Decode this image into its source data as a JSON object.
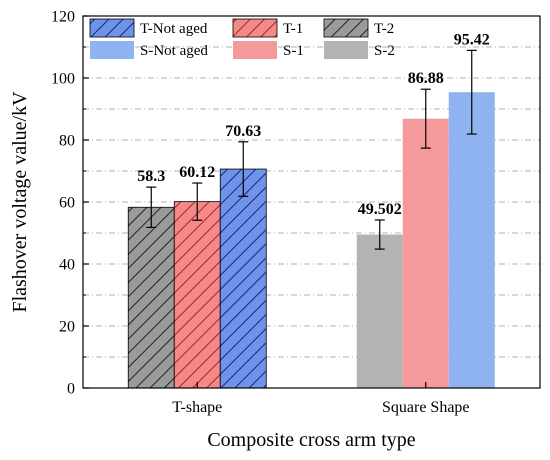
{
  "chart_data": {
    "type": "bar",
    "title": "",
    "xlabel": "Composite cross arm type",
    "ylabel": "Flashover voltage value/kV",
    "ylim": [
      0,
      120
    ],
    "yticks": [
      0,
      20,
      40,
      60,
      80,
      100,
      120
    ],
    "grid": "horizontal dash-dot",
    "legend_position": "top",
    "categories": [
      "T-shape",
      "Square Shape"
    ],
    "groups": [
      {
        "category": "T-shape",
        "bars": [
          {
            "series": "T-2",
            "value": 58.3,
            "error": 6.5,
            "label": "58.3"
          },
          {
            "series": "T-1",
            "value": 60.12,
            "error": 6.0,
            "label": "60.12"
          },
          {
            "series": "T-Not aged",
            "value": 70.63,
            "error": 8.8,
            "label": "70.63"
          }
        ]
      },
      {
        "category": "Square Shape",
        "bars": [
          {
            "series": "S-2",
            "value": 49.502,
            "error": 4.7,
            "label": "49.502"
          },
          {
            "series": "S-1",
            "value": 86.88,
            "error": 9.5,
            "label": "86.88"
          },
          {
            "series": "S-Not aged",
            "value": 95.42,
            "error": 13.5,
            "label": "95.42"
          }
        ]
      }
    ],
    "legend": [
      {
        "series": "T-Not aged",
        "color": "#5b7fdb",
        "hatched": true
      },
      {
        "series": "T-1",
        "color": "#f08080",
        "hatched": true
      },
      {
        "series": "T-2",
        "color": "#808080",
        "hatched": true
      },
      {
        "series": "S-Not aged",
        "color": "#8fb3f0",
        "hatched": false
      },
      {
        "series": "S-1",
        "color": "#f59a9a",
        "hatched": false
      },
      {
        "series": "S-2",
        "color": "#b3b3b3",
        "hatched": false
      }
    ],
    "colors": {
      "T-Not aged": "#5b7fdb",
      "T-1": "#f08080",
      "T-2": "#808080",
      "S-Not aged": "#8fb3f0",
      "S-1": "#f59a9a",
      "S-2": "#b3b3b3"
    }
  }
}
